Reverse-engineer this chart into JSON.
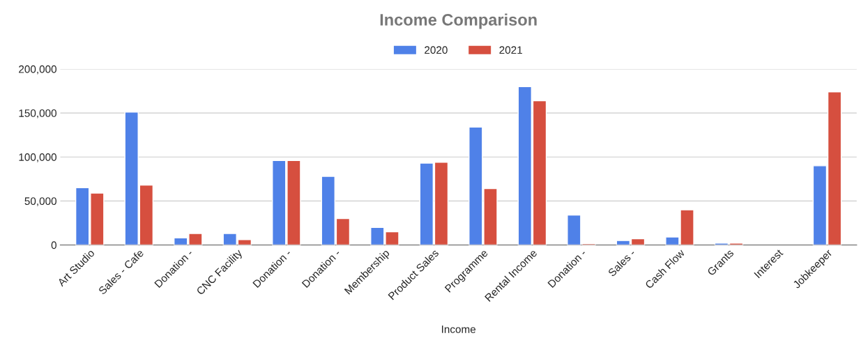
{
  "chart_data": {
    "type": "bar",
    "title": "Income Comparison",
    "xlabel": "Income",
    "categories": [
      "Art Studio",
      "Sales - Cafe",
      "Donation -",
      "CNC Facility",
      "Donation -",
      "Donation -",
      "Membership",
      "Product Sales",
      "Programme",
      "Rental Income",
      "Donation -",
      "Sales -",
      "Cash Flow",
      "Grants",
      "Interest",
      "Jobkeeper"
    ],
    "series": [
      {
        "name": "2020",
        "color": "#4f81e8",
        "values": [
          65000,
          151000,
          8000,
          13000,
          96000,
          78000,
          20000,
          93000,
          134000,
          180000,
          34000,
          5000,
          9000,
          2000,
          null,
          90000
        ]
      },
      {
        "name": "2021",
        "color": "#d64f3f",
        "values": [
          59000,
          68000,
          13000,
          6000,
          96000,
          30000,
          15000,
          94000,
          64000,
          164000,
          1500,
          7000,
          40000,
          2000,
          null,
          174000
        ]
      }
    ],
    "ylim": [
      0,
      200000
    ],
    "yticks": [
      {
        "value": 0,
        "label": "0"
      },
      {
        "value": 50000,
        "label": "50,000"
      },
      {
        "value": 100000,
        "label": "100,000"
      },
      {
        "value": 150000,
        "label": "150,000"
      },
      {
        "value": 200000,
        "label": "200,000"
      }
    ],
    "grid": "y",
    "legend": "top"
  }
}
